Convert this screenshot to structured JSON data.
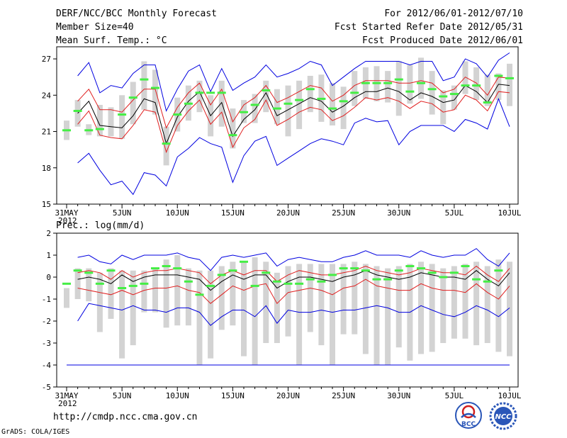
{
  "header": {
    "title": "DERF/NCC/BCC Monthly Forecast",
    "member_size": "Member Size=40",
    "variable": "Mean Surf. Temp.: °C",
    "period": "For 2012/06/01-2012/07/10",
    "fcst_started": "Fcst Started Refer Date 2012/05/31",
    "fcst_produced": "Fcst Produced Date 2012/06/01"
  },
  "footer": {
    "url": "http://cmdp.ncc.cma.gov.cn",
    "grads_credit": "GrADS: COLA/IGES",
    "logo_bcc_text": "BCC",
    "logo_ncc_text": "NCC"
  },
  "colors": {
    "mean": "#000000",
    "band": "#e02020",
    "envelope": "#0000e0",
    "box": "#d3d3d3",
    "obs": "#44ee44"
  },
  "chart_data": [
    {
      "type": "line",
      "title": "Mean Surf. Temp.: °C",
      "x_tick_labels": [
        "31MAY\n2012",
        "5JUN",
        "10JUN",
        "15JUN",
        "20JUN",
        "25JUN",
        "30JUN",
        "5JUL",
        "10JUL"
      ],
      "ylim": [
        15,
        28
      ],
      "yticks": [
        15,
        18,
        21,
        24,
        27
      ],
      "days": [
        "5/31",
        "6/1",
        "6/2",
        "6/3",
        "6/4",
        "6/5",
        "6/6",
        "6/7",
        "6/8",
        "6/9",
        "6/10",
        "6/11",
        "6/12",
        "6/13",
        "6/14",
        "6/15",
        "6/16",
        "6/17",
        "6/18",
        "6/19",
        "6/20",
        "6/21",
        "6/22",
        "6/23",
        "6/24",
        "6/25",
        "6/26",
        "6/27",
        "6/28",
        "6/29",
        "6/30",
        "7/1",
        "7/2",
        "7/3",
        "7/4",
        "7/5",
        "7/6",
        "7/7",
        "7/8",
        "7/9",
        "7/10"
      ],
      "series": [
        {
          "name": "ensemble max",
          "color": "#0000e0",
          "values": [
            null,
            25.6,
            26.7,
            24.2,
            24.8,
            24.6,
            25.8,
            26.5,
            26.5,
            22.7,
            24.5,
            26,
            26.5,
            24.3,
            26.2,
            24.4,
            25,
            25.5,
            26.5,
            25.5,
            25.8,
            26.2,
            26.8,
            26.5,
            24.8,
            25.5,
            26.2,
            26.8,
            26.8,
            26.8,
            26.8,
            26.5,
            26.8,
            26.8,
            25.2,
            25.5,
            27,
            26.6,
            25.5,
            26.9,
            27.5
          ]
        },
        {
          "name": "mean + 1 sd",
          "color": "#e02020",
          "values": [
            null,
            23.5,
            24.5,
            22.8,
            22.8,
            22.6,
            23.6,
            24.5,
            24.5,
            21.3,
            23,
            24.2,
            25,
            23.2,
            24.5,
            21.8,
            23.2,
            23.8,
            24.8,
            23.4,
            23.8,
            24.3,
            24.8,
            24.6,
            23.5,
            24,
            24.8,
            25.2,
            25.2,
            25.2,
            25,
            25,
            25.2,
            25,
            24.2,
            24.5,
            25.5,
            25,
            24,
            25.5,
            25.4
          ]
        },
        {
          "name": "ensemble mean",
          "color": "#000000",
          "values": [
            null,
            22.5,
            23.5,
            21.5,
            21.4,
            21.3,
            22.3,
            23.7,
            23.4,
            20,
            22.2,
            23.5,
            24.3,
            22.3,
            23.4,
            20.6,
            22,
            22.8,
            24.2,
            22.3,
            22.8,
            23.3,
            23.8,
            23.5,
            22.6,
            23.1,
            23.8,
            24.3,
            24.3,
            24.6,
            24.3,
            23.6,
            24.2,
            23.9,
            23.4,
            23.6,
            24.8,
            24.3,
            23.4,
            24.9,
            24.8
          ]
        },
        {
          "name": "mean - 1 sd",
          "color": "#e02020",
          "values": [
            null,
            21.6,
            22.7,
            20.7,
            20.5,
            20.4,
            21.5,
            22.8,
            22.6,
            19.3,
            21.5,
            22.7,
            23.6,
            21.6,
            22.6,
            19.7,
            21.3,
            22,
            23.6,
            21.5,
            22,
            22.6,
            23,
            22.8,
            21.9,
            22.3,
            23,
            23.8,
            23.6,
            23.8,
            23.5,
            22.9,
            23.5,
            23.3,
            22.6,
            22.8,
            24,
            23.6,
            22.7,
            24.3,
            24.2
          ]
        },
        {
          "name": "ensemble min",
          "color": "#0000e0",
          "values": [
            null,
            18.4,
            19.2,
            17.8,
            16.6,
            16.9,
            15.8,
            17.6,
            17.4,
            16.5,
            18.9,
            19.6,
            20.5,
            20,
            19.7,
            16.8,
            19,
            20.2,
            20.6,
            18.2,
            18.8,
            19.4,
            20,
            20.4,
            20.2,
            19.9,
            21.7,
            22.1,
            21.8,
            21.9,
            19.9,
            21,
            21.5,
            21.5,
            21.5,
            21,
            22,
            21.7,
            21.2,
            23.7,
            21.4
          ]
        },
        {
          "name": "observed",
          "color": "#44ee44",
          "values": [
            21.1,
            22.7,
            21.1,
            21.2,
            null,
            22.4,
            23.8,
            25.3,
            24.6,
            20,
            22.4,
            23.3,
            24.2,
            24.2,
            24.2,
            20.7,
            22.6,
            23.2,
            24.4,
            22.9,
            23.3,
            23.6,
            24.5,
            23.7,
            22.9,
            23.5,
            24.2,
            25,
            25,
            25,
            25.3,
            24.3,
            25,
            24.5,
            23.9,
            24.1,
            24.8,
            24.8,
            23.4,
            25.6,
            25.4
          ]
        }
      ],
      "box_min": [
        20.3,
        21.4,
        20.7,
        20.6,
        20.6,
        20.4,
        21.6,
        22.8,
        22.4,
        18.2,
        21,
        21.9,
        22.6,
        20.6,
        21.4,
        19.6,
        21.7,
        21.7,
        22.6,
        21.6,
        20.6,
        21.2,
        22.6,
        21.8,
        21.5,
        21.2,
        23.1,
        23.7,
        23.5,
        23.4,
        22.3,
        23.3,
        23.7,
        22.4,
        21.6,
        22.8,
        24.1,
        23.6,
        23.1,
        23.6,
        23.1
      ],
      "box_max": [
        21.9,
        23.6,
        21.6,
        23.2,
        23,
        24,
        25.1,
        26.8,
        26.1,
        21.4,
        23.8,
        24.8,
        25.2,
        24,
        25.2,
        22.9,
        23.6,
        24.1,
        25.2,
        24.5,
        24.8,
        25.2,
        25.6,
        25.7,
        25,
        24.7,
        26,
        26.3,
        26.4,
        26,
        26.8,
        26.5,
        27.1,
        26,
        24.4,
        24.8,
        26.8,
        26.3,
        25.7,
        25.8,
        26.6
      ]
    },
    {
      "type": "line",
      "title": "Prec.: log(mm/d)",
      "x_tick_labels": [
        "31MAY\n2012",
        "5JUN",
        "10JUN",
        "15JUN",
        "20JUN",
        "25JUN",
        "30JUN",
        "5JUL",
        "10JUL"
      ],
      "ylim": [
        -5,
        2
      ],
      "yticks": [
        -5,
        -4,
        -3,
        -2,
        -1,
        0,
        1,
        2
      ],
      "series": [
        {
          "name": "ensemble max",
          "color": "#0000e0",
          "values": [
            null,
            0.9,
            1,
            0.7,
            0.6,
            1,
            0.8,
            1,
            1,
            1,
            1.1,
            0.9,
            0.8,
            0.3,
            0.9,
            1,
            0.9,
            1,
            1.1,
            0.5,
            0.8,
            0.9,
            0.8,
            0.7,
            0.7,
            0.9,
            1,
            1.2,
            1,
            1,
            1,
            0.9,
            1.2,
            1,
            0.9,
            1,
            1,
            1.3,
            0.8,
            0.5,
            1.1
          ]
        },
        {
          "name": "mean + 1 sd",
          "color": "#e02020",
          "values": [
            null,
            0.2,
            0.3,
            0.2,
            -0.1,
            0.3,
            0,
            0.2,
            0.3,
            0.3,
            0.4,
            0.3,
            0.2,
            -0.3,
            0.1,
            0.3,
            0.1,
            0.3,
            0.3,
            -0.2,
            0.1,
            0.3,
            0.2,
            0.1,
            0.1,
            0.2,
            0.3,
            0.5,
            0.3,
            0.2,
            0.1,
            0.2,
            0.4,
            0.3,
            0.2,
            0.2,
            0.1,
            0.5,
            0.1,
            -0.2,
            0.4
          ]
        },
        {
          "name": "ensemble mean",
          "color": "#000000",
          "values": [
            null,
            -0.1,
            0,
            -0.1,
            -0.3,
            0.1,
            -0.2,
            0,
            0.1,
            0.1,
            0.1,
            0,
            -0.1,
            -0.6,
            -0.2,
            0.1,
            -0.1,
            0.1,
            0.1,
            -0.5,
            -0.2,
            0,
            0,
            -0.1,
            -0.2,
            0,
            0.1,
            0.3,
            0.1,
            0,
            -0.1,
            0,
            0.2,
            0.1,
            0,
            0,
            -0.1,
            0.3,
            -0.1,
            -0.4,
            0.2
          ]
        },
        {
          "name": "mean - 1 sd",
          "color": "#e02020",
          "values": [
            null,
            -0.5,
            -0.6,
            -0.7,
            -0.8,
            -0.6,
            -0.8,
            -0.6,
            -0.5,
            -0.5,
            -0.4,
            -0.6,
            -0.7,
            -1.2,
            -0.8,
            -0.4,
            -0.6,
            -0.4,
            -0.3,
            -1.2,
            -0.7,
            -0.6,
            -0.5,
            -0.6,
            -0.8,
            -0.5,
            -0.4,
            -0.1,
            -0.4,
            -0.5,
            -0.6,
            -0.6,
            -0.3,
            -0.5,
            -0.6,
            -0.6,
            -0.7,
            -0.3,
            -0.7,
            -1,
            -0.4
          ]
        },
        {
          "name": "ensemble min",
          "color": "#0000e0",
          "values": [
            null,
            -2,
            -1.2,
            -1.3,
            -1.4,
            -1.5,
            -1.3,
            -1.5,
            -1.5,
            -1.6,
            -1.4,
            -1.4,
            -1.6,
            -2.2,
            -1.8,
            -1.5,
            -1.5,
            -1.8,
            -1.3,
            -2.1,
            -1.5,
            -1.6,
            -1.6,
            -1.5,
            -1.6,
            -1.5,
            -1.5,
            -1.4,
            -1.3,
            -1.4,
            -1.6,
            -1.6,
            -1.3,
            -1.5,
            -1.7,
            -1.8,
            -1.6,
            -1.3,
            -1.5,
            -1.8,
            -1.4
          ]
        },
        {
          "name": "observed",
          "color": "#44ee44",
          "values": [
            -0.3,
            0.3,
            0.2,
            -0.3,
            0.3,
            -0.5,
            -0.4,
            -0.3,
            0.4,
            0.5,
            0.4,
            -0.2,
            -0.8,
            -0.4,
            0.1,
            0.3,
            0.7,
            -0.4,
            0.2,
            -0.2,
            -0.3,
            -0.3,
            -0.1,
            -0.2,
            0.1,
            0.4,
            0.4,
            0.3,
            -0.1,
            -0.1,
            0.3,
            0.5,
            0.4,
            0.2,
            0,
            0.2,
            0.5,
            -0.1,
            -0.2,
            0.3,
            null
          ]
        },
        {
          "name": "lower bound",
          "color": "#0000e0",
          "values": [
            -4,
            -4,
            -4,
            -4,
            -4,
            -4,
            -4,
            -4,
            -4,
            -4,
            -4,
            -4,
            -4,
            -4,
            -4,
            -4,
            -4,
            -4,
            -4,
            -4,
            -4,
            -4,
            -4,
            -4,
            -4,
            -4,
            -4,
            -4,
            -4,
            -4,
            -4,
            -4,
            -4,
            -4,
            -4,
            -4,
            -4,
            -4,
            -4,
            -4,
            -4
          ]
        }
      ],
      "box_min": [
        -1.4,
        -1,
        -1.1,
        -2.5,
        -1.9,
        -3.7,
        -3.1,
        -1.6,
        -1.6,
        -2.3,
        -2.2,
        -2.2,
        -4,
        -3.7,
        -2.4,
        -2.2,
        -3.6,
        -4,
        -3,
        -3,
        -2.7,
        -4,
        -2.5,
        -3.1,
        -4,
        -2.6,
        -2.6,
        -3.5,
        -4,
        -4,
        -3.2,
        -3.8,
        -3.5,
        -3.4,
        -3,
        -2.8,
        -2.8,
        -3.1,
        -3,
        -3.4,
        -3.6
      ],
      "box_max": [
        -0.5,
        0.4,
        0.4,
        0.2,
        0.4,
        0.3,
        0.3,
        0.3,
        0.4,
        0.8,
        1,
        0.4,
        0.3,
        0.3,
        0.5,
        0.7,
        0.7,
        0.9,
        0.7,
        0.2,
        0.5,
        0.6,
        0.6,
        0.6,
        0.6,
        0.6,
        0.7,
        0.6,
        0.5,
        0.4,
        0.5,
        0.6,
        0.7,
        0.6,
        0.4,
        0.5,
        0.6,
        0.7,
        0.5,
        0.8,
        0.7
      ]
    }
  ]
}
